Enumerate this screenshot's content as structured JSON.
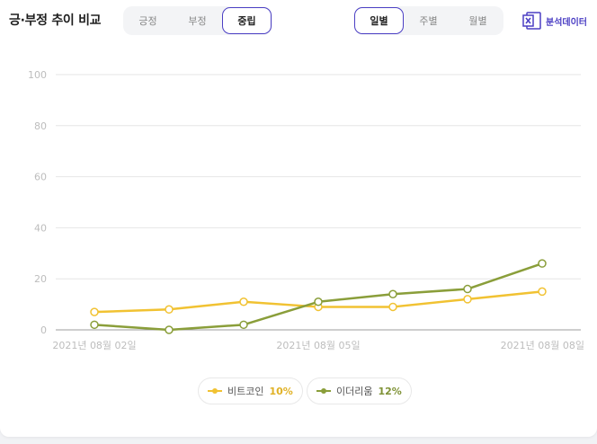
{
  "header": {
    "title": "긍·부정 추이 비교"
  },
  "sentiment_tabs": [
    {
      "label": "긍정",
      "active": false
    },
    {
      "label": "부정",
      "active": false
    },
    {
      "label": "중립",
      "active": true
    }
  ],
  "period_tabs": [
    {
      "label": "일별",
      "active": true
    },
    {
      "label": "주별",
      "active": false
    },
    {
      "label": "월별",
      "active": false
    }
  ],
  "export": {
    "label": "분석데이터",
    "icon": "excel-icon"
  },
  "colors": {
    "accent": "#4b3fc4",
    "series_bitcoin": "#f1c232",
    "series_ethereum": "#8a9e3a"
  },
  "legend": [
    {
      "name": "비트코인",
      "pct": "10%"
    },
    {
      "name": "이더리움",
      "pct": "12%"
    }
  ],
  "chart_data": {
    "type": "line",
    "x": [
      "2021-08-02",
      "2021-08-03",
      "2021-08-04",
      "2021-08-05",
      "2021-08-06",
      "2021-08-07",
      "2021-08-08"
    ],
    "x_tick_labels": [
      "2021년 08월 02일",
      "2021년 08월 05일",
      "2021년 08월 08일"
    ],
    "y_ticks": [
      0,
      20,
      40,
      60,
      80,
      100
    ],
    "ylim": [
      0,
      100
    ],
    "grid": true,
    "legend_position": "bottom",
    "series": [
      {
        "name": "비트코인",
        "color": "#f1c232",
        "values": [
          7,
          8,
          11,
          9,
          9,
          12,
          15
        ]
      },
      {
        "name": "이더리움",
        "color": "#8a9e3a",
        "values": [
          2,
          0,
          2,
          11,
          14,
          16,
          26
        ]
      }
    ]
  }
}
